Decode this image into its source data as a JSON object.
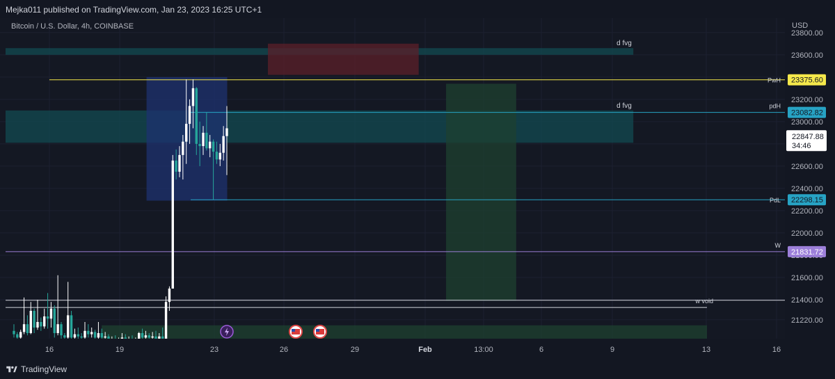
{
  "header": {
    "publisher": "Mejka011 published on TradingView.com, Jan 23, 2023 16:25 UTC+1"
  },
  "chart_title": "Bitcoin / U.S. Dollar, 4h, COINBASE",
  "footer": {
    "logo_text": "TradingView"
  },
  "colors": {
    "bg": "#141823",
    "grid": "#1c2030",
    "candle_up": "#ffffff",
    "candle_down": "#26a69a",
    "fvg_zone": "#124a52",
    "bear_zone": "#5b1f2a",
    "ob_zone": "#1e3270",
    "tp_zone": "#1e4030",
    "pwh": "#f5e84b",
    "pdh": "#27a3c4",
    "pdl": "#27a3c4",
    "w": "#9c7fd9"
  },
  "chart_data": {
    "type": "candlestick",
    "currency": "USD",
    "price_axis": {
      "ticks": [
        21220,
        21400,
        21600,
        21800,
        22000,
        22200,
        22400,
        22600,
        22800,
        23000,
        23200,
        23400,
        23600,
        23800
      ],
      "tick_labels": [
        "21220.00",
        "21400.00",
        "21600.00",
        "21800.00",
        "22000.00",
        "22200.00",
        "22400.00",
        "22600.00",
        "22800.00",
        "23000.00",
        "23200.00",
        "23400.00",
        "23600.00",
        "23800.00"
      ],
      "ylim": [
        21050,
        23930
      ]
    },
    "time_axis": {
      "ticks": [
        "16",
        "19",
        "23",
        "26",
        "29",
        "Feb",
        "13:00",
        "6",
        "9",
        "13",
        "16"
      ],
      "bold": [
        "Feb"
      ]
    },
    "current_price": {
      "value": "22847.88",
      "countdown": "34:46"
    },
    "levels": [
      {
        "name": "PwH",
        "value": "23375.60",
        "price": 23375.6,
        "color": "#f5e84b",
        "label_bg": "#f5e84b",
        "label_fg": "#131722"
      },
      {
        "name": "pdH",
        "value": "23082.82",
        "price": 23082.82,
        "color": "#27a3c4",
        "label_bg": "#27a3c4",
        "label_fg": "#131722"
      },
      {
        "name": "PdL",
        "value": "22298.15",
        "price": 22298.15,
        "color": "#27a3c4",
        "label_bg": "#27a3c4",
        "label_fg": "#131722"
      },
      {
        "name": "W",
        "value": "21831.72",
        "price": 21831.72,
        "color": "#9c7fd9",
        "label_bg": "#9c7fd9",
        "label_fg": "#ffffff"
      }
    ],
    "lines": [
      {
        "name": "w void",
        "price_top": 21395,
        "price_bottom": 21330,
        "color": "#d1d4dc"
      }
    ],
    "zones": [
      {
        "label": "d fvg",
        "price_top": 23660,
        "price_bottom": 23600,
        "x0": 0.0,
        "x1": 0.895,
        "color": "#124a52"
      },
      {
        "label": "d fvg",
        "price_top": 23100,
        "price_bottom": 22810,
        "x0": 0.0,
        "x1": 0.895,
        "color": "#124a52"
      },
      {
        "label": "",
        "price_top": 23700,
        "price_bottom": 23420,
        "x0": 0.374,
        "x1": 0.589,
        "color": "#5b1f2a"
      },
      {
        "label": "",
        "price_top": 23400,
        "price_bottom": 22290,
        "x0": 0.201,
        "x1": 0.316,
        "color": "#1e3270"
      },
      {
        "label": "",
        "price_top": 23340,
        "price_bottom": 21390,
        "x0": 0.628,
        "x1": 0.728,
        "color": "#1e4030"
      },
      {
        "label": "",
        "price_top": 21170,
        "price_bottom": 21020,
        "x0": 0.137,
        "x1": 1.0,
        "color": "#1e4030"
      }
    ],
    "candles": [
      {
        "o": 21120,
        "h": 21180,
        "l": 21060,
        "c": 21090
      },
      {
        "o": 21090,
        "h": 21110,
        "l": 21040,
        "c": 21060
      },
      {
        "o": 21060,
        "h": 21130,
        "l": 21040,
        "c": 21110
      },
      {
        "o": 21110,
        "h": 21420,
        "l": 21090,
        "c": 21180
      },
      {
        "o": 21180,
        "h": 21260,
        "l": 21080,
        "c": 21100
      },
      {
        "o": 21100,
        "h": 21380,
        "l": 21090,
        "c": 21300
      },
      {
        "o": 21300,
        "h": 21320,
        "l": 21100,
        "c": 21150
      },
      {
        "o": 21150,
        "h": 21400,
        "l": 21130,
        "c": 21200
      },
      {
        "o": 21200,
        "h": 21240,
        "l": 21120,
        "c": 21160
      },
      {
        "o": 21160,
        "h": 21320,
        "l": 21140,
        "c": 21250
      },
      {
        "o": 21250,
        "h": 21460,
        "l": 21140,
        "c": 21230
      },
      {
        "o": 21230,
        "h": 21380,
        "l": 21150,
        "c": 21320
      },
      {
        "o": 21320,
        "h": 21350,
        "l": 21060,
        "c": 21100
      },
      {
        "o": 21100,
        "h": 21620,
        "l": 21080,
        "c": 21180
      },
      {
        "o": 21180,
        "h": 21200,
        "l": 21040,
        "c": 21080
      },
      {
        "o": 21080,
        "h": 21100,
        "l": 21020,
        "c": 21060
      },
      {
        "o": 21060,
        "h": 21560,
        "l": 21040,
        "c": 21260
      },
      {
        "o": 21260,
        "h": 21300,
        "l": 21030,
        "c": 21060
      },
      {
        "o": 21060,
        "h": 21140,
        "l": 21030,
        "c": 21090
      },
      {
        "o": 21090,
        "h": 21150,
        "l": 21020,
        "c": 21070
      },
      {
        "o": 21070,
        "h": 21100,
        "l": 21030,
        "c": 21060
      },
      {
        "o": 21060,
        "h": 21200,
        "l": 21040,
        "c": 21120
      },
      {
        "o": 21120,
        "h": 21180,
        "l": 21060,
        "c": 21090
      },
      {
        "o": 21090,
        "h": 21150,
        "l": 21060,
        "c": 21110
      },
      {
        "o": 21110,
        "h": 21130,
        "l": 21040,
        "c": 21060
      },
      {
        "o": 21060,
        "h": 21200,
        "l": 21030,
        "c": 21100
      },
      {
        "o": 21100,
        "h": 21140,
        "l": 21040,
        "c": 21060
      },
      {
        "o": 21060,
        "h": 21110,
        "l": 21030,
        "c": 21070
      },
      {
        "o": 21070,
        "h": 21090,
        "l": 21020,
        "c": 21040
      },
      {
        "o": 21040,
        "h": 21070,
        "l": 21020,
        "c": 21050
      },
      {
        "o": 21050,
        "h": 21080,
        "l": 21020,
        "c": 21040
      },
      {
        "o": 21040,
        "h": 21060,
        "l": 21020,
        "c": 21050
      },
      {
        "o": 21050,
        "h": 21100,
        "l": 21030,
        "c": 21060
      },
      {
        "o": 21060,
        "h": 21090,
        "l": 21030,
        "c": 21040
      },
      {
        "o": 21040,
        "h": 21070,
        "l": 21020,
        "c": 21050
      },
      {
        "o": 21050,
        "h": 21080,
        "l": 21030,
        "c": 21040
      },
      {
        "o": 21040,
        "h": 21060,
        "l": 21020,
        "c": 21050
      },
      {
        "o": 21050,
        "h": 21110,
        "l": 21040,
        "c": 21100
      },
      {
        "o": 21100,
        "h": 21140,
        "l": 21050,
        "c": 21060
      },
      {
        "o": 21060,
        "h": 21120,
        "l": 21040,
        "c": 21080
      },
      {
        "o": 21080,
        "h": 21100,
        "l": 21040,
        "c": 21060
      },
      {
        "o": 21060,
        "h": 21110,
        "l": 21040,
        "c": 21070
      },
      {
        "o": 21070,
        "h": 21120,
        "l": 21030,
        "c": 21050
      },
      {
        "o": 21050,
        "h": 21100,
        "l": 21030,
        "c": 21070
      },
      {
        "o": 21070,
        "h": 21150,
        "l": 21040,
        "c": 21050
      },
      {
        "o": 21050,
        "h": 21430,
        "l": 21040,
        "c": 21380
      },
      {
        "o": 21380,
        "h": 21520,
        "l": 21300,
        "c": 21500
      },
      {
        "o": 21500,
        "h": 22700,
        "l": 21500,
        "c": 22650
      },
      {
        "o": 22650,
        "h": 22750,
        "l": 22480,
        "c": 22550
      },
      {
        "o": 22550,
        "h": 22780,
        "l": 22500,
        "c": 22700
      },
      {
        "o": 22700,
        "h": 22880,
        "l": 22480,
        "c": 22820
      },
      {
        "o": 22820,
        "h": 23380,
        "l": 22620,
        "c": 22980
      },
      {
        "o": 22980,
        "h": 23200,
        "l": 22800,
        "c": 23140
      },
      {
        "o": 23140,
        "h": 23380,
        "l": 22940,
        "c": 23300
      },
      {
        "o": 23300,
        "h": 23310,
        "l": 22700,
        "c": 22800
      },
      {
        "o": 22800,
        "h": 23000,
        "l": 22600,
        "c": 22780
      },
      {
        "o": 22780,
        "h": 22960,
        "l": 22700,
        "c": 22900
      },
      {
        "o": 22900,
        "h": 23080,
        "l": 22740,
        "c": 22760
      },
      {
        "o": 22760,
        "h": 22880,
        "l": 22680,
        "c": 22820
      },
      {
        "o": 22820,
        "h": 22840,
        "l": 22300,
        "c": 22730
      },
      {
        "o": 22730,
        "h": 22820,
        "l": 22620,
        "c": 22660
      },
      {
        "o": 22660,
        "h": 22800,
        "l": 22600,
        "c": 22720
      },
      {
        "o": 22720,
        "h": 22960,
        "l": 22650,
        "c": 22870
      },
      {
        "o": 22870,
        "h": 23140,
        "l": 22520,
        "c": 22940
      }
    ],
    "event_icons": [
      {
        "name": "lightning-event-icon",
        "index": 0
      },
      {
        "name": "us-flag-event-icon",
        "index": 1
      },
      {
        "name": "us-flag-event-icon",
        "index": 2
      }
    ]
  }
}
